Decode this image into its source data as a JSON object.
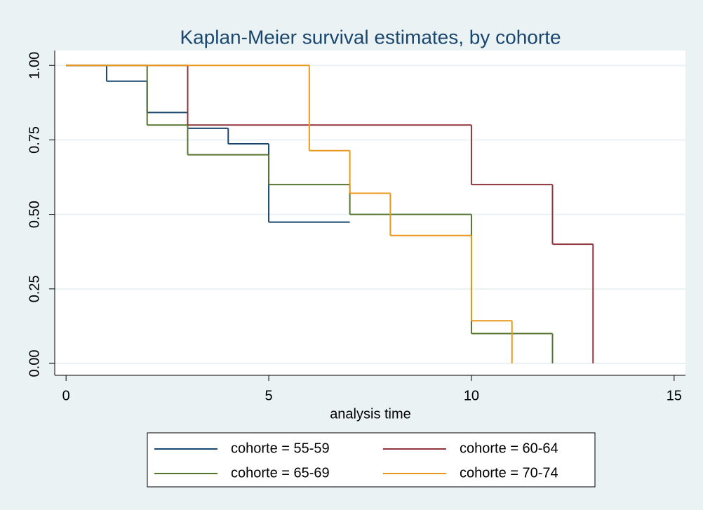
{
  "chart_data": {
    "type": "step",
    "title": "Kaplan-Meier survival estimates, by cohorte",
    "x_label": "analysis time",
    "series": [
      {
        "name": "cohorte = 55-59",
        "color": "#1a476f",
        "x": [
          0,
          1,
          2,
          3,
          4,
          5,
          7
        ],
        "values": [
          1,
          0.947,
          0.842,
          0.789,
          0.737,
          0.474,
          0.474
        ]
      },
      {
        "name": "cohorte = 60-64",
        "color": "#90353b",
        "x": [
          0,
          3,
          10,
          12,
          13
        ],
        "values": [
          1,
          0.8,
          0.6,
          0.4,
          0
        ]
      },
      {
        "name": "cohorte = 65-69",
        "color": "#55752f",
        "x": [
          0,
          2,
          3,
          5,
          7,
          10,
          12
        ],
        "values": [
          1,
          0.8,
          0.7,
          0.6,
          0.5,
          0.1,
          0
        ]
      },
      {
        "name": "cohorte = 70-74",
        "color": "#e8981c",
        "x": [
          0,
          6,
          7,
          8,
          10,
          11
        ],
        "values": [
          1,
          0.714,
          0.571,
          0.429,
          0.143,
          0
        ]
      }
    ],
    "xlim": [
      -0.28,
      15.28
    ],
    "ylim": [
      -0.04,
      1.05
    ],
    "xticks": [
      0,
      5,
      10,
      15
    ],
    "yticks": [
      {
        "value": 0,
        "label": "0.00"
      },
      {
        "value": 0.25,
        "label": "0.25"
      },
      {
        "value": 0.5,
        "label": "0.50"
      },
      {
        "value": 0.75,
        "label": "0.75"
      },
      {
        "value": 1,
        "label": "1.00"
      }
    ],
    "grid": true
  }
}
